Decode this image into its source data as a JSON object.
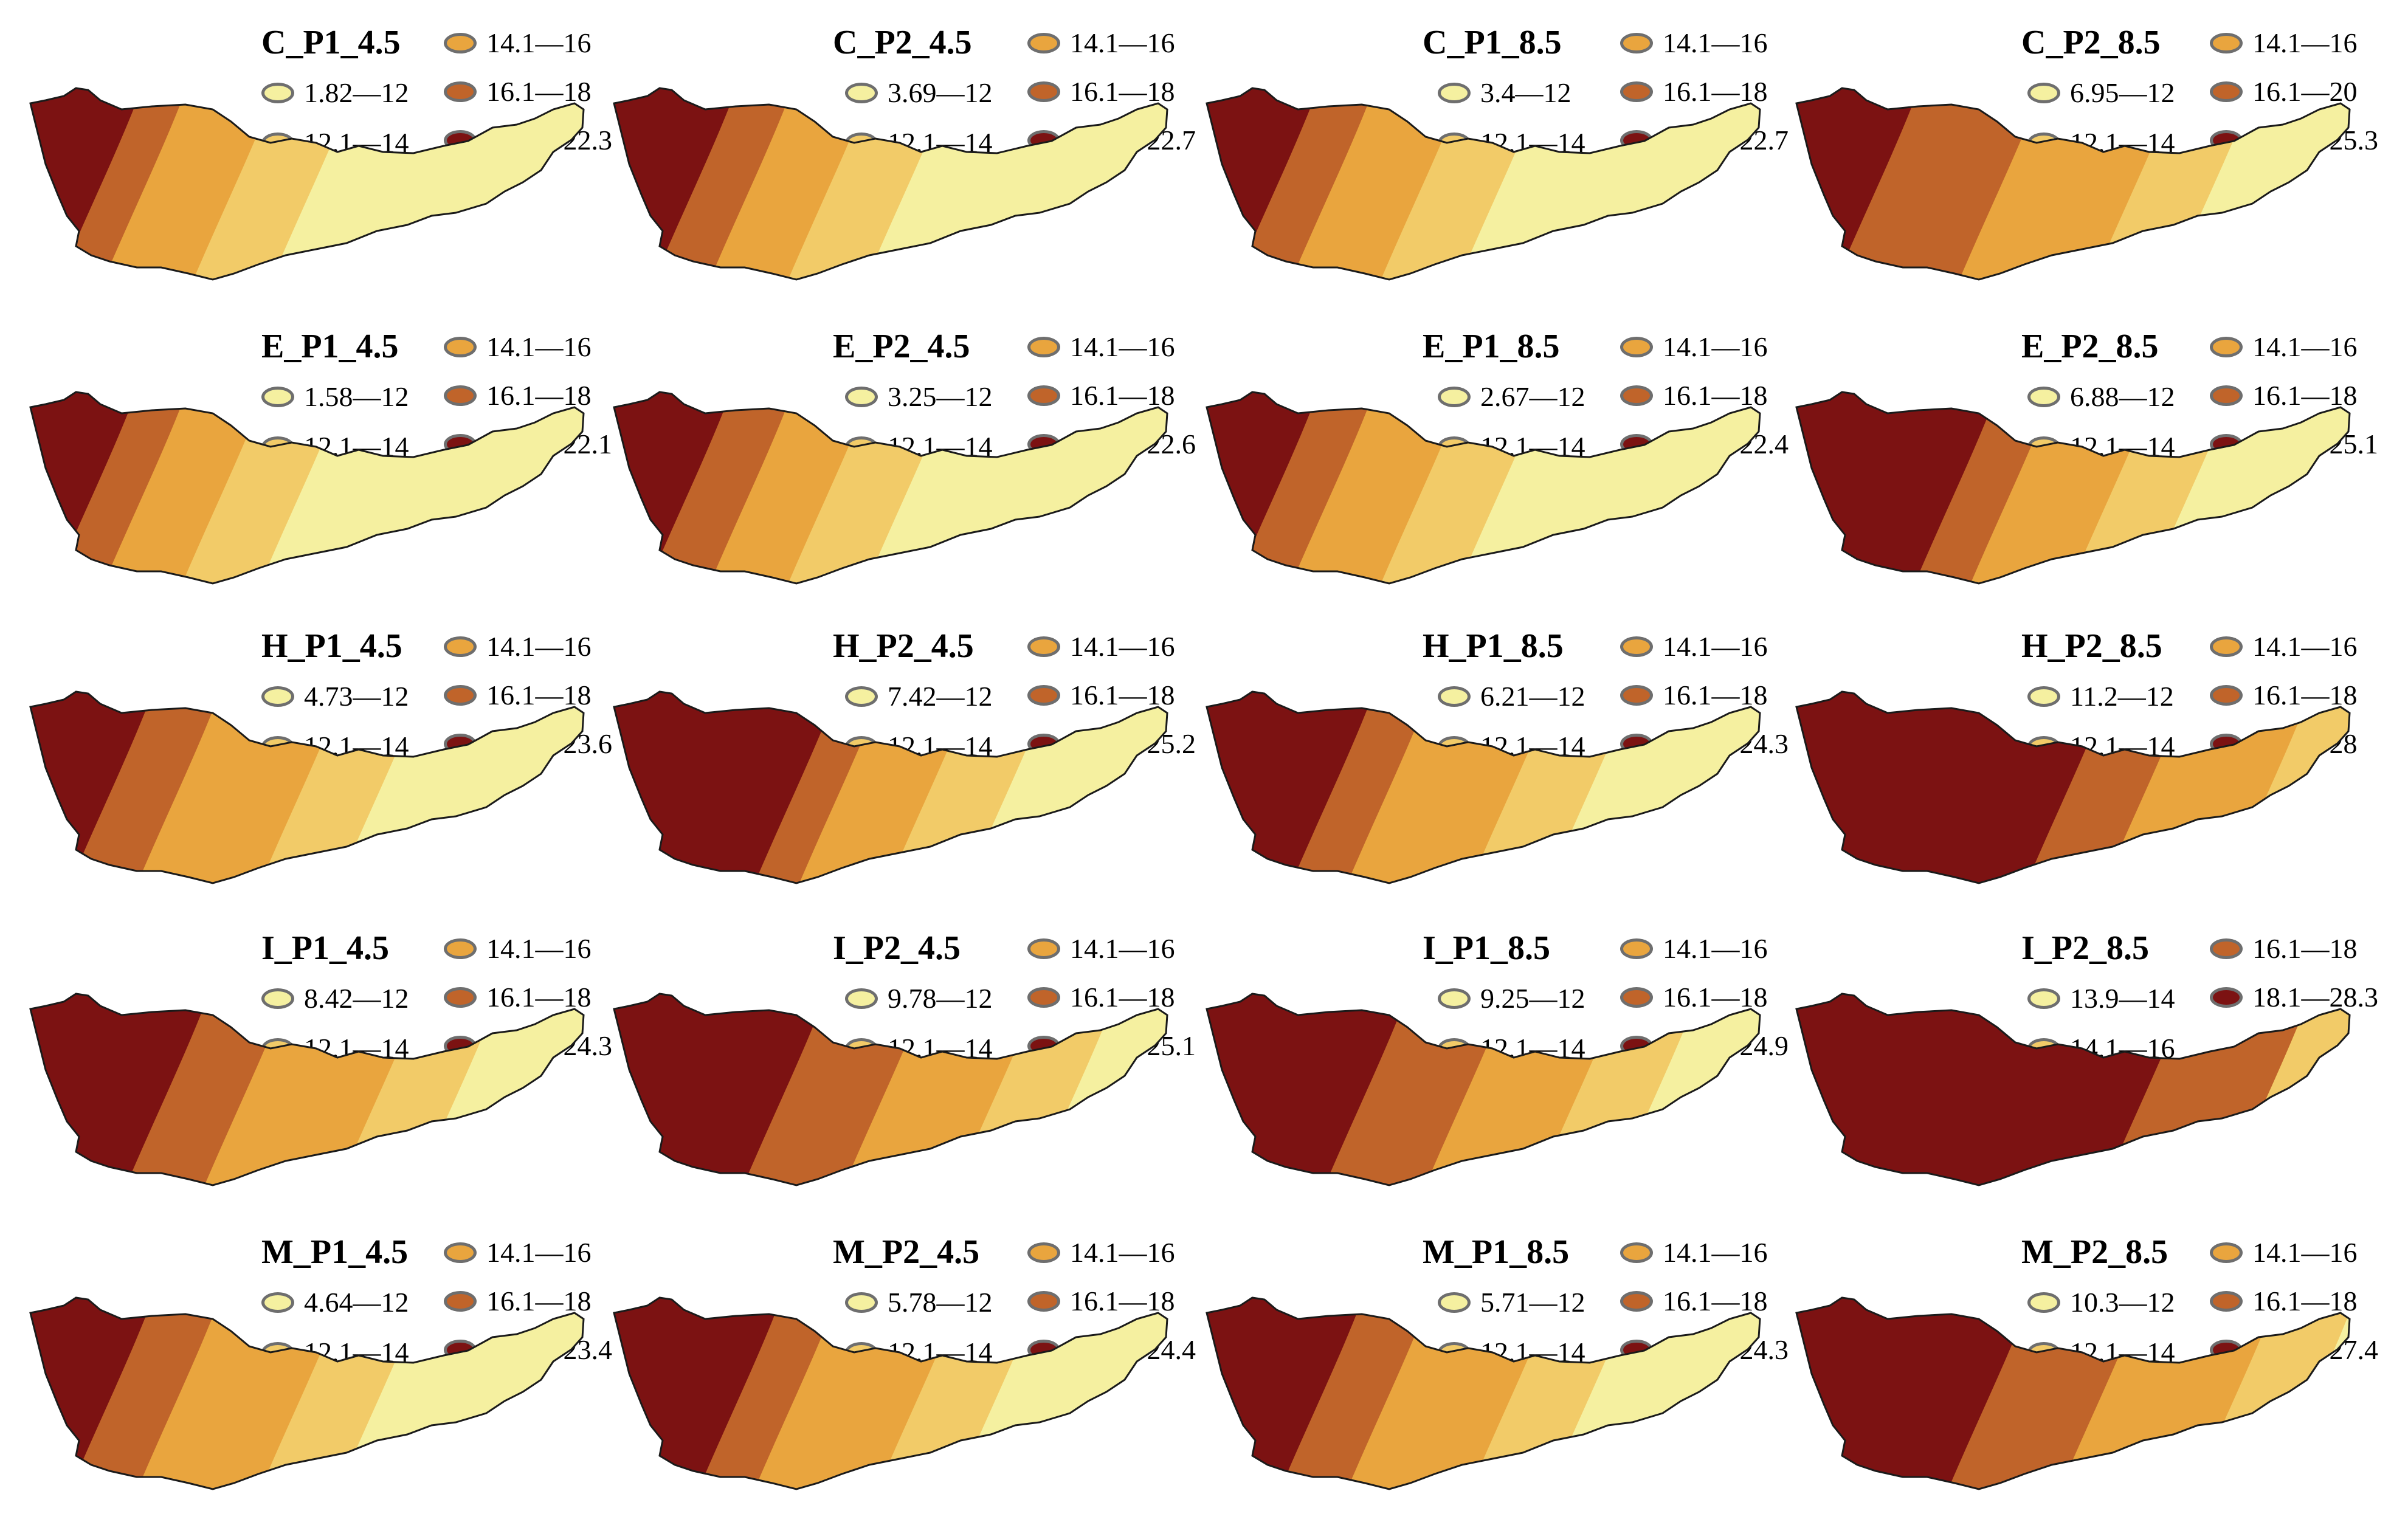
{
  "classes": {
    "c1": "#f5f0a0",
    "c2": "#f2cb68",
    "c3": "#e9a53e",
    "c4": "#c0642a",
    "c5": "#7c1212"
  },
  "panels": [
    {
      "title": "C_P1_4.5",
      "legend": [
        {
          "label": "14.1—16",
          "cls": "c3"
        },
        {
          "label": "1.82—12",
          "cls": "c1"
        },
        {
          "label": "16.1—18",
          "cls": "c4"
        },
        {
          "label": "12.1—14",
          "cls": "c2"
        },
        {
          "label": "18.1—22.3",
          "cls": "c5"
        }
      ],
      "zones": {
        "c5": 0.14,
        "c4": 0.22,
        "c3": 0.38
      }
    },
    {
      "title": "C_P2_4.5",
      "legend": [
        {
          "label": "14.1—16",
          "cls": "c3"
        },
        {
          "label": "3.69—12",
          "cls": "c1"
        },
        {
          "label": "16.1—18",
          "cls": "c4"
        },
        {
          "label": "12.1—14",
          "cls": "c2"
        },
        {
          "label": "18.1—22.7",
          "cls": "c5"
        }
      ],
      "zones": {
        "c5": 0.16,
        "c4": 0.26,
        "c3": 0.4
      }
    },
    {
      "title": "C_P1_8.5",
      "legend": [
        {
          "label": "14.1—16",
          "cls": "c3"
        },
        {
          "label": "3.4—12",
          "cls": "c1"
        },
        {
          "label": "16.1—18",
          "cls": "c4"
        },
        {
          "label": "12.1—14",
          "cls": "c2"
        },
        {
          "label": "18.1—22.7",
          "cls": "c5"
        }
      ],
      "zones": {
        "c5": 0.14,
        "c4": 0.24,
        "c3": 0.4
      }
    },
    {
      "title": "C_P2_8.5",
      "legend": [
        {
          "label": "14.1—16",
          "cls": "c3"
        },
        {
          "label": "6.95—12",
          "cls": "c1"
        },
        {
          "label": "16.1—20",
          "cls": "c4"
        },
        {
          "label": "12.1—14",
          "cls": "c2"
        },
        {
          "label": "20.1—25.3",
          "cls": "c5"
        }
      ],
      "zones": {
        "c5": 0.16,
        "c4": 0.38,
        "c3": 0.62
      }
    },
    {
      "title": "E_P1_4.5",
      "legend": [
        {
          "label": "14.1—16",
          "cls": "c3"
        },
        {
          "label": "1.58—12",
          "cls": "c1"
        },
        {
          "label": "16.1—18",
          "cls": "c4"
        },
        {
          "label": "12.1—14",
          "cls": "c2"
        },
        {
          "label": "18.1—22.1",
          "cls": "c5"
        }
      ],
      "zones": {
        "c5": 0.13,
        "c4": 0.22,
        "c3": 0.36
      }
    },
    {
      "title": "E_P2_4.5",
      "legend": [
        {
          "label": "14.1—16",
          "cls": "c3"
        },
        {
          "label": "3.25—12",
          "cls": "c1"
        },
        {
          "label": "16.1—18",
          "cls": "c4"
        },
        {
          "label": "12.1—14",
          "cls": "c2"
        },
        {
          "label": "18.1—22.6",
          "cls": "c5"
        }
      ],
      "zones": {
        "c5": 0.15,
        "c4": 0.26,
        "c3": 0.4
      }
    },
    {
      "title": "E_P1_8.5",
      "legend": [
        {
          "label": "14.1—16",
          "cls": "c3"
        },
        {
          "label": "2.67—12",
          "cls": "c1"
        },
        {
          "label": "16.1—18",
          "cls": "c4"
        },
        {
          "label": "12.1—14",
          "cls": "c2"
        },
        {
          "label": "18.1—22.4",
          "cls": "c5"
        }
      ],
      "zones": {
        "c5": 0.14,
        "c4": 0.24,
        "c3": 0.4
      }
    },
    {
      "title": "E_P2_8.5",
      "legend": [
        {
          "label": "14.1—16",
          "cls": "c3"
        },
        {
          "label": "6.88—12",
          "cls": "c1"
        },
        {
          "label": "16.1—18",
          "cls": "c4"
        },
        {
          "label": "12.1—14",
          "cls": "c2"
        },
        {
          "label": "18.1—25.1",
          "cls": "c5"
        }
      ],
      "zones": {
        "c5": 0.3,
        "c4": 0.4,
        "c3": 0.58
      }
    },
    {
      "title": "H_P1_4.5",
      "legend": [
        {
          "label": "14.1—16",
          "cls": "c3"
        },
        {
          "label": "4.73—12",
          "cls": "c1"
        },
        {
          "label": "16.1—18",
          "cls": "c4"
        },
        {
          "label": "12.1—14",
          "cls": "c2"
        },
        {
          "label": "18.1—23.6",
          "cls": "c5"
        }
      ],
      "zones": {
        "c5": 0.16,
        "c4": 0.28,
        "c3": 0.5
      }
    },
    {
      "title": "H_P2_4.5",
      "legend": [
        {
          "label": "14.1—16",
          "cls": "c3"
        },
        {
          "label": "7.42—12",
          "cls": "c1"
        },
        {
          "label": "16.1—18",
          "cls": "c4"
        },
        {
          "label": "12.1—14",
          "cls": "c2"
        },
        {
          "label": "18.1—25.2",
          "cls": "c5"
        }
      ],
      "zones": {
        "c5": 0.34,
        "c4": 0.42,
        "c3": 0.58
      }
    },
    {
      "title": "H_P1_8.5",
      "legend": [
        {
          "label": "14.1—16",
          "cls": "c3"
        },
        {
          "label": "6.21—12",
          "cls": "c1"
        },
        {
          "label": "16.1—18",
          "cls": "c4"
        },
        {
          "label": "12.1—14",
          "cls": "c2"
        },
        {
          "label": "18.1—24.3",
          "cls": "c5"
        }
      ],
      "zones": {
        "c5": 0.24,
        "c4": 0.34,
        "c3": 0.56
      }
    },
    {
      "title": "H_P2_8.5",
      "legend": [
        {
          "label": "14.1—16",
          "cls": "c3"
        },
        {
          "label": "11.2—12",
          "cls": "c1"
        },
        {
          "label": "16.1—18",
          "cls": "c4"
        },
        {
          "label": "12.1—14",
          "cls": "c2"
        },
        {
          "label": "18.1—28",
          "cls": "c5"
        }
      ],
      "zones": {
        "c5": 0.5,
        "c4": 0.64,
        "c3": 0.86
      }
    },
    {
      "title": "I_P1_4.5",
      "legend": [
        {
          "label": "14.1—16",
          "cls": "c3"
        },
        {
          "label": "8.42—12",
          "cls": "c1"
        },
        {
          "label": "16.1—18",
          "cls": "c4"
        },
        {
          "label": "12.1—14",
          "cls": "c2"
        },
        {
          "label": "18.1—24.3",
          "cls": "c5"
        }
      ],
      "zones": {
        "c5": 0.26,
        "c4": 0.4,
        "c3": 0.64
      }
    },
    {
      "title": "I_P2_4.5",
      "legend": [
        {
          "label": "14.1—16",
          "cls": "c3"
        },
        {
          "label": "9.78—12",
          "cls": "c1"
        },
        {
          "label": "16.1—18",
          "cls": "c4"
        },
        {
          "label": "12.1—14",
          "cls": "c2"
        },
        {
          "label": "18.1—25.1",
          "cls": "c5"
        }
      ],
      "zones": {
        "c5": 0.32,
        "c4": 0.5,
        "c3": 0.7
      }
    },
    {
      "title": "I_P1_8.5",
      "legend": [
        {
          "label": "14.1—16",
          "cls": "c3"
        },
        {
          "label": "9.25—12",
          "cls": "c1"
        },
        {
          "label": "16.1—18",
          "cls": "c4"
        },
        {
          "label": "12.1—14",
          "cls": "c2"
        },
        {
          "label": "18.1—24.9",
          "cls": "c5"
        }
      ],
      "zones": {
        "c5": 0.3,
        "c4": 0.48,
        "c3": 0.68
      }
    },
    {
      "title": "I_P2_8.5",
      "legend": [
        {
          "label": "16.1—18",
          "cls": "c4"
        },
        {
          "label": "13.9—14",
          "cls": "c1"
        },
        {
          "label": "18.1—28.3",
          "cls": "c5"
        },
        {
          "label": "14.1—16",
          "cls": "c2"
        }
      ],
      "zones": {
        "c5": 0.64,
        "c4": 0.86,
        "c3": 0.86
      }
    },
    {
      "title": "M_P1_4.5",
      "legend": [
        {
          "label": "14.1—16",
          "cls": "c3"
        },
        {
          "label": "4.64—12",
          "cls": "c1"
        },
        {
          "label": "16.1—18",
          "cls": "c4"
        },
        {
          "label": "12.1—14",
          "cls": "c2"
        },
        {
          "label": "18.1—23.4",
          "cls": "c5"
        }
      ],
      "zones": {
        "c5": 0.16,
        "c4": 0.28,
        "c3": 0.5
      }
    },
    {
      "title": "M_P2_4.5",
      "legend": [
        {
          "label": "14.1—16",
          "cls": "c3"
        },
        {
          "label": "5.78—12",
          "cls": "c1"
        },
        {
          "label": "16.1—18",
          "cls": "c4"
        },
        {
          "label": "12.1—14",
          "cls": "c2"
        },
        {
          "label": "18.1—24.4",
          "cls": "c5"
        }
      ],
      "zones": {
        "c5": 0.24,
        "c4": 0.34,
        "c3": 0.56
      }
    },
    {
      "title": "M_P1_8.5",
      "legend": [
        {
          "label": "14.1—16",
          "cls": "c3"
        },
        {
          "label": "5.71—12",
          "cls": "c1"
        },
        {
          "label": "16.1—18",
          "cls": "c4"
        },
        {
          "label": "12.1—14",
          "cls": "c2"
        },
        {
          "label": "18.1—24.3",
          "cls": "c5"
        }
      ],
      "zones": {
        "c5": 0.22,
        "c4": 0.34,
        "c3": 0.56
      }
    },
    {
      "title": "M_P2_8.5",
      "legend": [
        {
          "label": "14.1—16",
          "cls": "c3"
        },
        {
          "label": "10.3—12",
          "cls": "c1"
        },
        {
          "label": "16.1—18",
          "cls": "c4"
        },
        {
          "label": "12.1—14",
          "cls": "c2"
        },
        {
          "label": "18.1—27.4",
          "cls": "c5"
        }
      ],
      "zones": {
        "c5": 0.36,
        "c4": 0.56,
        "c3": 0.8
      }
    }
  ]
}
